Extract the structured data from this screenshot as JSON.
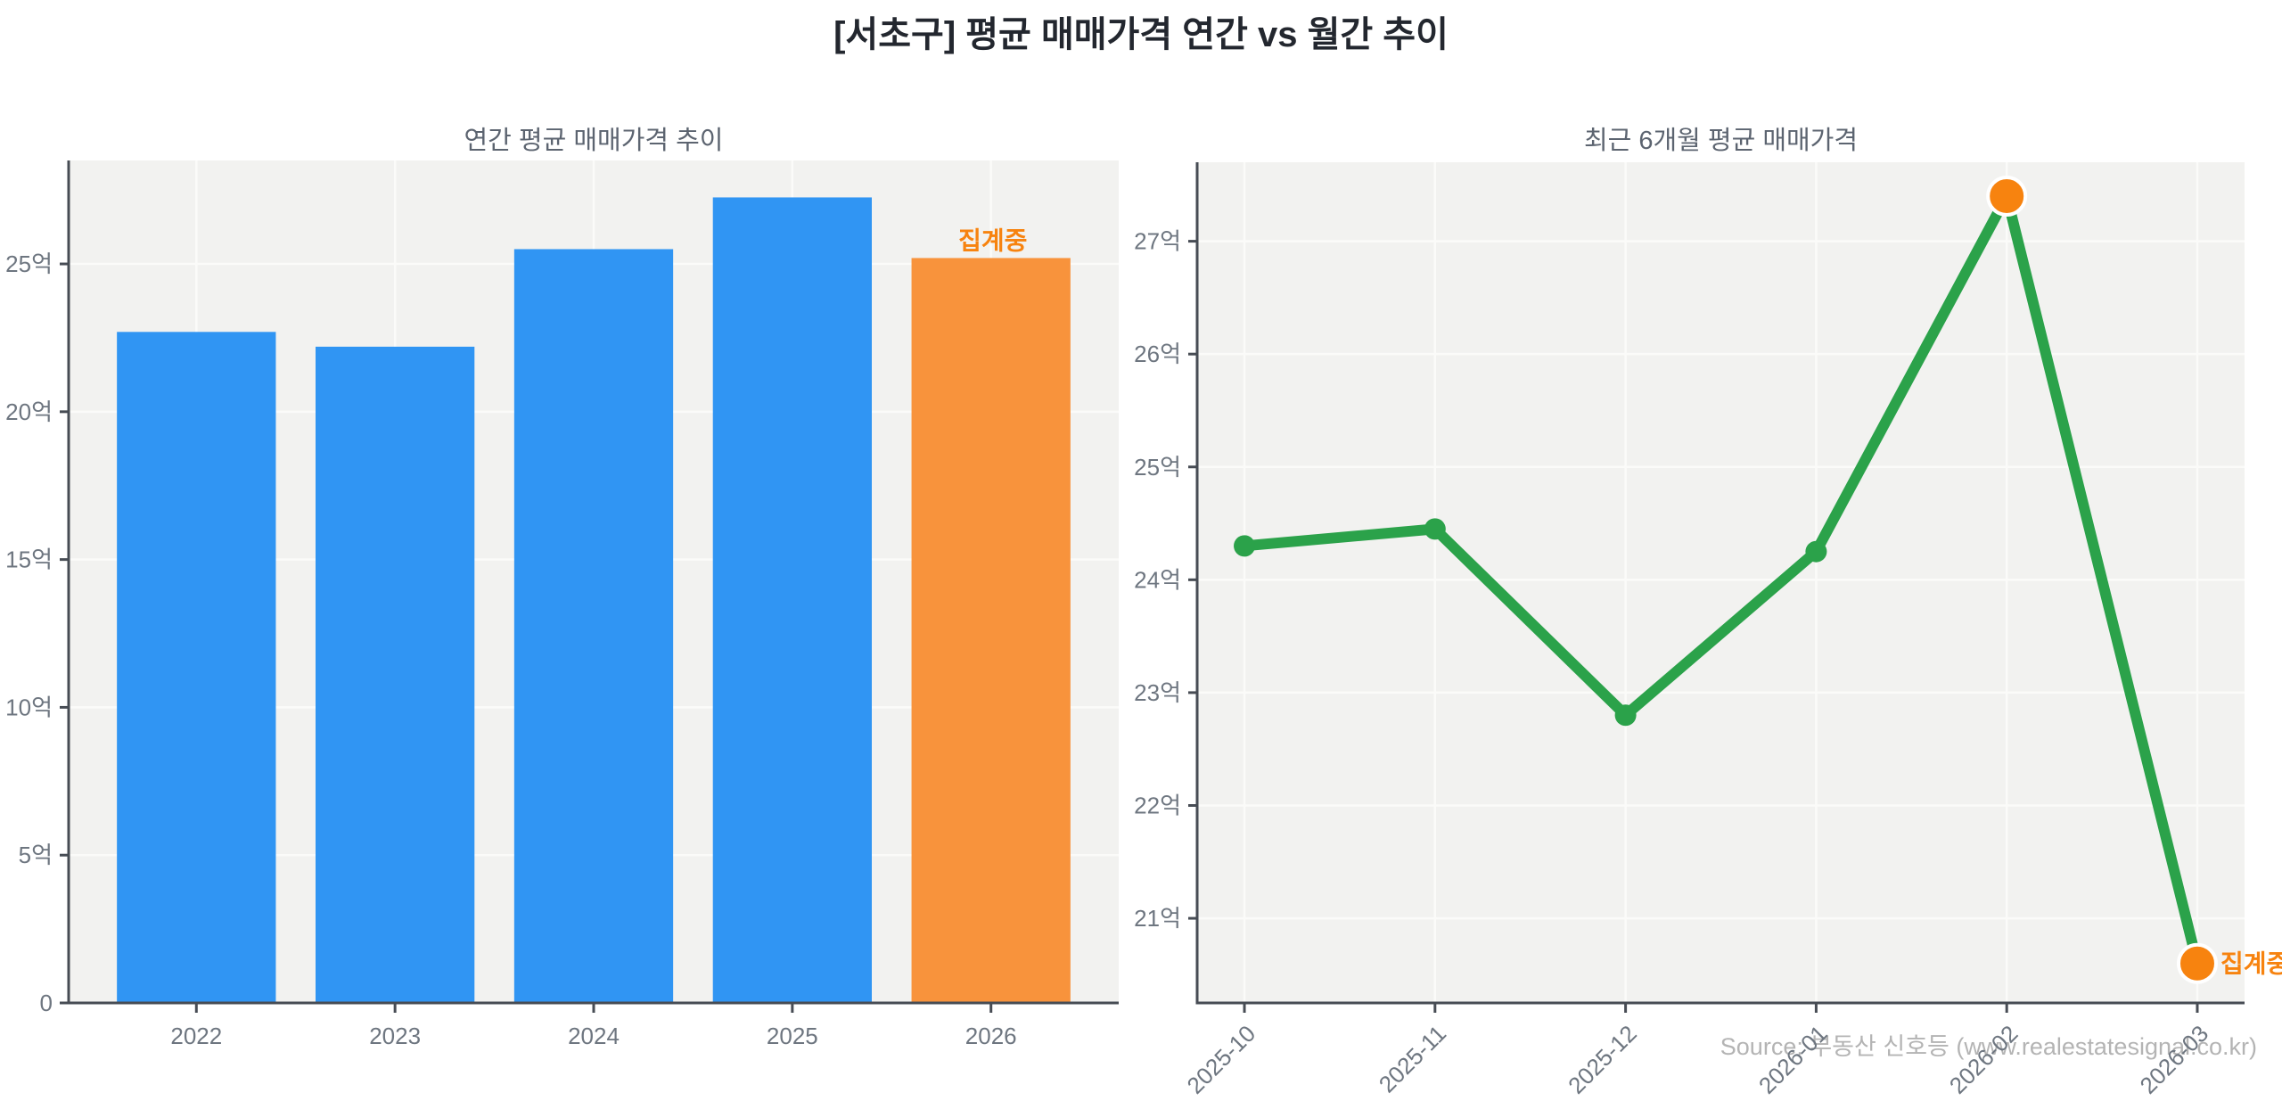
{
  "page": {
    "title": "[서초구] 평균 매매가격 연간 vs 월간 추이",
    "source": "Source: 부동산 신호등 (www.realestatesignal.co.kr)"
  },
  "colors": {
    "blue": "#3095f3",
    "orange_bar": "#f8933c",
    "orange_accent": "#f7830f",
    "green": "#2ba24a",
    "plot_bg": "#f2f2f0",
    "grid": "#fbfbf9",
    "axis": "#474c54",
    "tick_label": "#6e7680",
    "chart_title": "#5c6470",
    "main_title": "#23272f",
    "source_text": "#b4b4b4",
    "point_edge": "#ffffff"
  },
  "chart_data": [
    {
      "type": "bar",
      "title": "연간 평균 매매가격 추이",
      "unit": "억",
      "categories": [
        "2022",
        "2023",
        "2024",
        "2025",
        "2026"
      ],
      "values": [
        22.7,
        22.2,
        25.5,
        27.25,
        25.2
      ],
      "bar_colors": [
        "#3095f3",
        "#3095f3",
        "#3095f3",
        "#3095f3",
        "#f8933c"
      ],
      "ylim": [
        0,
        28.5
      ],
      "yticks": [
        0,
        5,
        10,
        15,
        20,
        25
      ],
      "ytick_labels": [
        "0",
        "5억",
        "10억",
        "15억",
        "20억",
        "25억"
      ],
      "grid": true,
      "legend": false,
      "annotation": {
        "text": "집계중",
        "index": 4,
        "color": "#f7830f"
      }
    },
    {
      "type": "line",
      "title": "최근 6개월 평균 매매가격",
      "unit": "억",
      "categories": [
        "2025-10",
        "2025-11",
        "2025-12",
        "2026-01",
        "2026-02",
        "2026-03"
      ],
      "values": [
        24.3,
        24.45,
        22.8,
        24.25,
        27.4,
        20.6
      ],
      "line_color": "#2ba24a",
      "point_colors": [
        "#2ba24a",
        "#2ba24a",
        "#2ba24a",
        "#2ba24a",
        "#f7830f",
        "#f7830f"
      ],
      "highlight_indices": [
        4,
        5
      ],
      "ylim": [
        20.25,
        27.7
      ],
      "yticks": [
        21,
        22,
        23,
        24,
        25,
        26,
        27
      ],
      "ytick_labels": [
        "21억",
        "22억",
        "23억",
        "24억",
        "25억",
        "26억",
        "27억"
      ],
      "grid": true,
      "legend": false,
      "xtick_rotation": 45,
      "annotation": {
        "text": "집계중",
        "index": 5,
        "color": "#f7830f"
      }
    }
  ]
}
